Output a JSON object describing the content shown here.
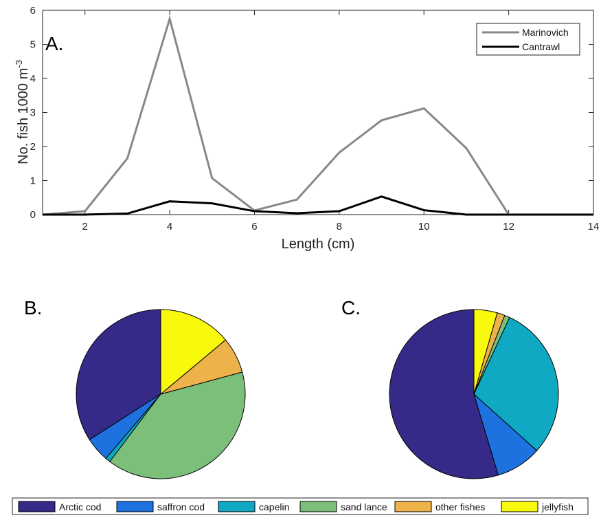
{
  "chart_data": [
    {
      "panel": "A.",
      "type": "line",
      "xlabel": "Length (cm)",
      "ylabel_main": "No. fish 1000 m",
      "ylabel_sup": "-3",
      "xlim": [
        1,
        14
      ],
      "ylim": [
        0,
        6
      ],
      "xticks": [
        2,
        4,
        6,
        8,
        10,
        12,
        14
      ],
      "yticks": [
        0,
        1,
        2,
        3,
        4,
        5,
        6
      ],
      "grid": false,
      "legend_position": "top-right",
      "series": [
        {
          "name": "Marinovich",
          "color": "#888888",
          "x": [
            1,
            2,
            3,
            4,
            5,
            6,
            7,
            8,
            9,
            10,
            11,
            12,
            13,
            14
          ],
          "y": [
            0,
            0.1,
            1.65,
            5.75,
            1.07,
            0.12,
            0.44,
            1.82,
            2.77,
            3.12,
            1.95,
            0,
            0,
            0
          ]
        },
        {
          "name": "Cantrawl",
          "color": "#000000",
          "x": [
            1,
            2,
            3,
            4,
            5,
            6,
            7,
            8,
            9,
            10,
            11,
            12,
            13,
            14
          ],
          "y": [
            0,
            0,
            0.03,
            0.39,
            0.33,
            0.1,
            0.04,
            0.1,
            0.53,
            0.13,
            0,
            0,
            0,
            0
          ]
        }
      ]
    },
    {
      "panel": "B.",
      "type": "pie",
      "labels": [
        "Arctic cod",
        "saffron cod",
        "capelin",
        "sand lance",
        "other fishes",
        "jellyfish"
      ],
      "values": [
        36.2,
        5.0,
        1.0,
        42.0,
        7.3,
        14.8
      ]
    },
    {
      "panel": "C.",
      "type": "pie",
      "labels": [
        "Arctic cod",
        "saffron cod",
        "capelin",
        "sand lance",
        "other fishes",
        "jellyfish"
      ],
      "values": [
        55.2,
        8.8,
        30.0,
        1.0,
        1.5,
        4.5
      ]
    }
  ],
  "legend": {
    "colors": [
      "#352A87",
      "#1E72E0",
      "#0FA9C4",
      "#7CBF7A",
      "#EEB24A",
      "#F9F90E"
    ]
  }
}
